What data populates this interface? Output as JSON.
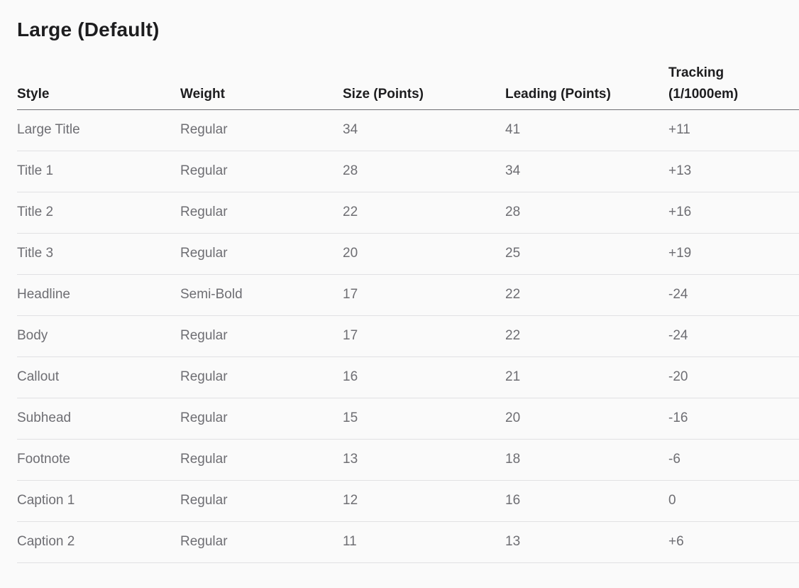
{
  "section": {
    "title": "Large (Default)"
  },
  "table": {
    "headers": {
      "style": "Style",
      "weight": "Weight",
      "size": "Size (Points)",
      "leading": "Leading (Points)",
      "tracking_line1": "Tracking",
      "tracking_line2": "(1/1000em)"
    },
    "rows": [
      {
        "style": "Large Title",
        "weight": "Regular",
        "size": "34",
        "leading": "41",
        "tracking": "+11"
      },
      {
        "style": "Title 1",
        "weight": "Regular",
        "size": "28",
        "leading": "34",
        "tracking": "+13"
      },
      {
        "style": "Title 2",
        "weight": "Regular",
        "size": "22",
        "leading": "28",
        "tracking": "+16"
      },
      {
        "style": "Title 3",
        "weight": "Regular",
        "size": "20",
        "leading": "25",
        "tracking": "+19"
      },
      {
        "style": "Headline",
        "weight": "Semi-Bold",
        "size": "17",
        "leading": "22",
        "tracking": "-24"
      },
      {
        "style": "Body",
        "weight": "Regular",
        "size": "17",
        "leading": "22",
        "tracking": "-24"
      },
      {
        "style": "Callout",
        "weight": "Regular",
        "size": "16",
        "leading": "21",
        "tracking": "-20"
      },
      {
        "style": "Subhead",
        "weight": "Regular",
        "size": "15",
        "leading": "20",
        "tracking": "-16"
      },
      {
        "style": "Footnote",
        "weight": "Regular",
        "size": "13",
        "leading": "18",
        "tracking": "-6"
      },
      {
        "style": "Caption 1",
        "weight": "Regular",
        "size": "12",
        "leading": "16",
        "tracking": "0"
      },
      {
        "style": "Caption 2",
        "weight": "Regular",
        "size": "11",
        "leading": "13",
        "tracking": "+6"
      }
    ]
  },
  "colors": {
    "background": "#fafafa",
    "header_text": "#1d1d1f",
    "cell_text": "#6e6e73",
    "row_divider": "#e1e1e3",
    "header_divider": "#6e6e73"
  }
}
